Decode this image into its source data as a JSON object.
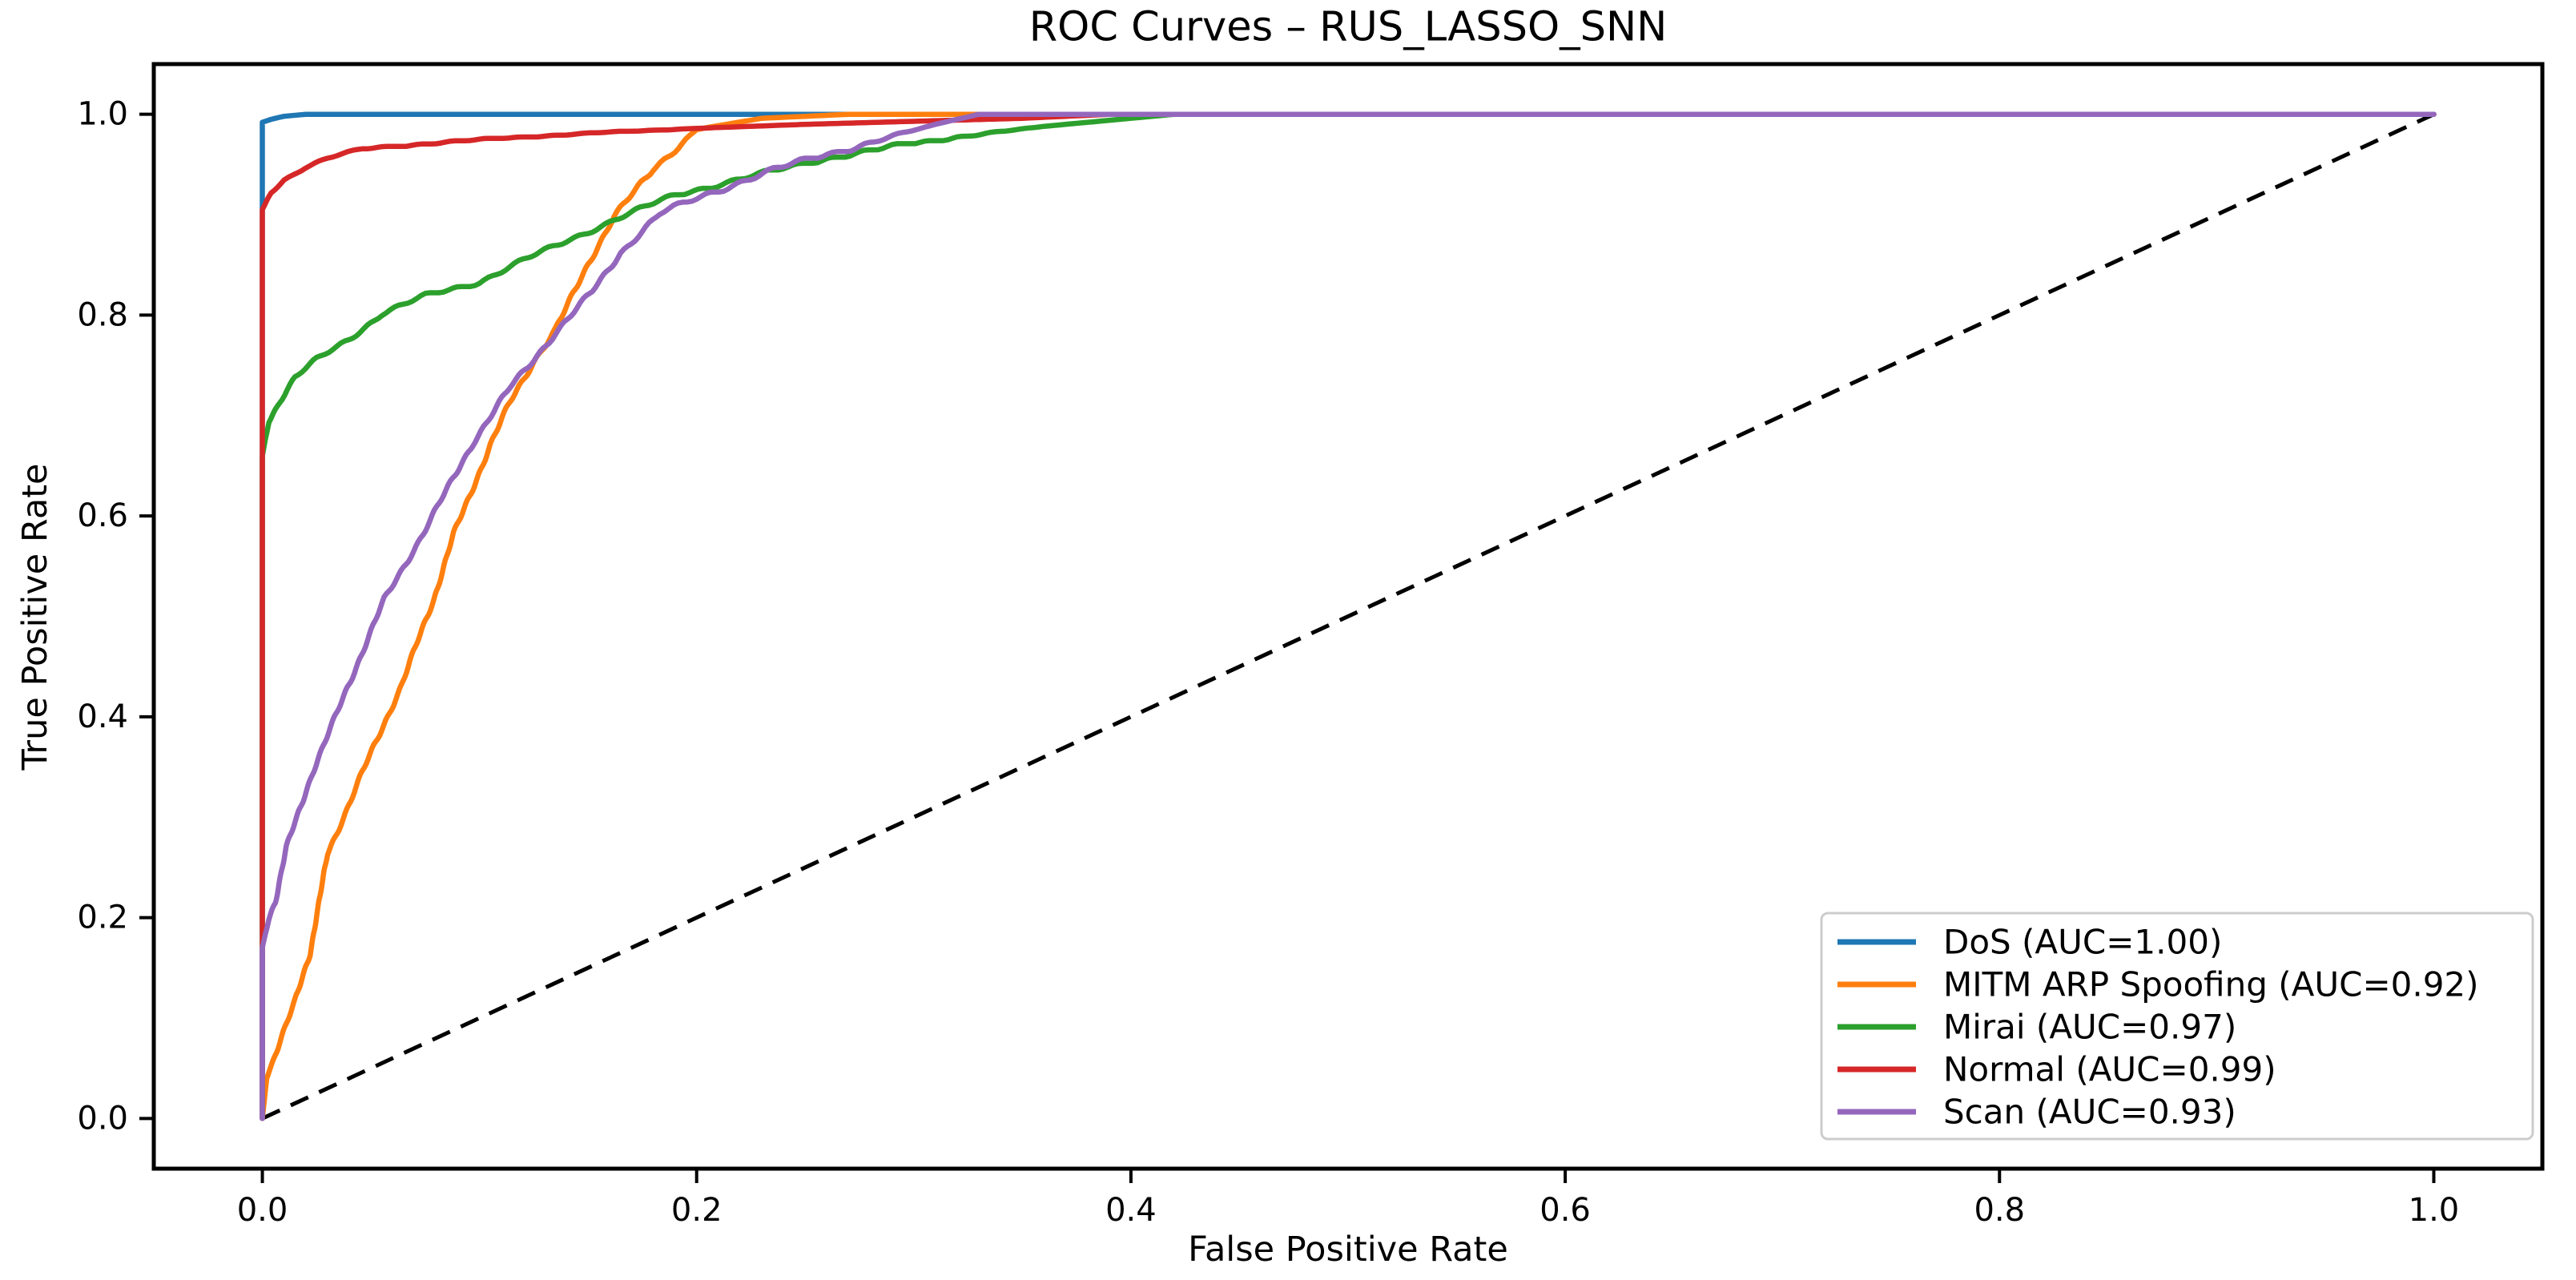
{
  "page": {
    "background": "#ffffff"
  },
  "chart_data": {
    "type": "line",
    "title": "ROC Curves – RUS_LASSO_SNN",
    "xlabel": "False Positive Rate",
    "ylabel": "True Positive Rate",
    "xlim": [
      -0.05,
      1.05
    ],
    "ylim": [
      -0.05,
      1.05
    ],
    "grid": false,
    "x_ticks": {
      "values": [
        0.0,
        0.2,
        0.4,
        0.6,
        0.8,
        1.0
      ],
      "labels": [
        "0.0",
        "0.2",
        "0.4",
        "0.6",
        "0.8",
        "1.0"
      ]
    },
    "y_ticks": {
      "values": [
        0.0,
        0.2,
        0.4,
        0.6,
        0.8,
        1.0
      ],
      "labels": [
        "0.0",
        "0.2",
        "0.4",
        "0.6",
        "0.8",
        "1.0"
      ]
    },
    "reference_line": {
      "name": "chance-diagonal",
      "style": "dashed",
      "color": "#000000",
      "points": [
        [
          0,
          0
        ],
        [
          1,
          1
        ]
      ]
    },
    "legend": {
      "position": "lower right",
      "items": [
        "DoS (AUC=1.00)",
        "MITM ARP Spoofing (AUC=0.92)",
        "Mirai (AUC=0.97)",
        "Normal (AUC=0.99)",
        "Scan (AUC=0.93)"
      ]
    },
    "series": [
      {
        "name": "DoS",
        "label": "DoS (AUC=1.00)",
        "auc": "1.00",
        "color": "#1f77b4",
        "jitter": 0,
        "points": [
          [
            0,
            0
          ],
          [
            0,
            0.992
          ],
          [
            0.004,
            0.995
          ],
          [
            0.01,
            0.998
          ],
          [
            0.02,
            1.0
          ],
          [
            1,
            1
          ]
        ]
      },
      {
        "name": "MITM ARP Spoofing",
        "label": "MITM ARP Spoofing (AUC=0.92)",
        "auc": "0.92",
        "color": "#ff7f0e",
        "jitter": 0.005,
        "points": [
          [
            0,
            0
          ],
          [
            0.002,
            0.04
          ],
          [
            0.008,
            0.075
          ],
          [
            0.015,
            0.115
          ],
          [
            0.022,
            0.165
          ],
          [
            0.03,
            0.265
          ],
          [
            0.046,
            0.345
          ],
          [
            0.064,
            0.43
          ],
          [
            0.079,
            0.516
          ],
          [
            0.088,
            0.581
          ],
          [
            0.105,
            0.672
          ],
          [
            0.114,
            0.715
          ],
          [
            0.125,
            0.755
          ],
          [
            0.135,
            0.785
          ],
          [
            0.15,
            0.85
          ],
          [
            0.162,
            0.896
          ],
          [
            0.18,
            0.945
          ],
          [
            0.2,
            0.985
          ],
          [
            0.23,
            0.996
          ],
          [
            0.27,
            1.0
          ],
          [
            1,
            1
          ]
        ]
      },
      {
        "name": "Mirai",
        "label": "Mirai (AUC=0.97)",
        "auc": "0.97",
        "color": "#2ca02c",
        "jitter": 0.004,
        "points": [
          [
            0,
            0
          ],
          [
            0,
            0.66
          ],
          [
            0.003,
            0.695
          ],
          [
            0.008,
            0.715
          ],
          [
            0.015,
            0.738
          ],
          [
            0.025,
            0.755
          ],
          [
            0.04,
            0.775
          ],
          [
            0.055,
            0.8
          ],
          [
            0.075,
            0.818
          ],
          [
            0.1,
            0.833
          ],
          [
            0.12,
            0.855
          ],
          [
            0.14,
            0.875
          ],
          [
            0.162,
            0.896
          ],
          [
            0.19,
            0.92
          ],
          [
            0.231,
            0.94
          ],
          [
            0.26,
            0.955
          ],
          [
            0.29,
            0.967
          ],
          [
            0.32,
            0.978
          ],
          [
            0.36,
            0.988
          ],
          [
            0.42,
            1.0
          ],
          [
            1,
            1
          ]
        ]
      },
      {
        "name": "Normal",
        "label": "Normal (AUC=0.99)",
        "auc": "0.99",
        "color": "#d62728",
        "jitter": 0.002,
        "points": [
          [
            0,
            0
          ],
          [
            0,
            0.905
          ],
          [
            0.004,
            0.922
          ],
          [
            0.01,
            0.935
          ],
          [
            0.02,
            0.948
          ],
          [
            0.03,
            0.957
          ],
          [
            0.046,
            0.966
          ],
          [
            0.08,
            0.972
          ],
          [
            0.12,
            0.977
          ],
          [
            0.16,
            0.982
          ],
          [
            0.2,
            0.986
          ],
          [
            0.25,
            0.99
          ],
          [
            0.3,
            0.993
          ],
          [
            0.35,
            0.996
          ],
          [
            0.39,
            1.0
          ],
          [
            1,
            1
          ]
        ]
      },
      {
        "name": "Scan",
        "label": "Scan (AUC=0.93)",
        "auc": "0.93",
        "color": "#9467bd",
        "jitter": 0.005,
        "points": [
          [
            0,
            0
          ],
          [
            0,
            0.17
          ],
          [
            0.003,
            0.198
          ],
          [
            0.006,
            0.215
          ],
          [
            0.011,
            0.268
          ],
          [
            0.023,
            0.345
          ],
          [
            0.039,
            0.43
          ],
          [
            0.056,
            0.516
          ],
          [
            0.074,
            0.581
          ],
          [
            0.097,
            0.672
          ],
          [
            0.114,
            0.728
          ],
          [
            0.135,
            0.784
          ],
          [
            0.152,
            0.825
          ],
          [
            0.165,
            0.863
          ],
          [
            0.183,
            0.9
          ],
          [
            0.2,
            0.915
          ],
          [
            0.231,
            0.94
          ],
          [
            0.256,
            0.957
          ],
          [
            0.284,
            0.975
          ],
          [
            0.31,
            0.99
          ],
          [
            0.33,
            1.0
          ],
          [
            1,
            1
          ]
        ]
      }
    ]
  }
}
